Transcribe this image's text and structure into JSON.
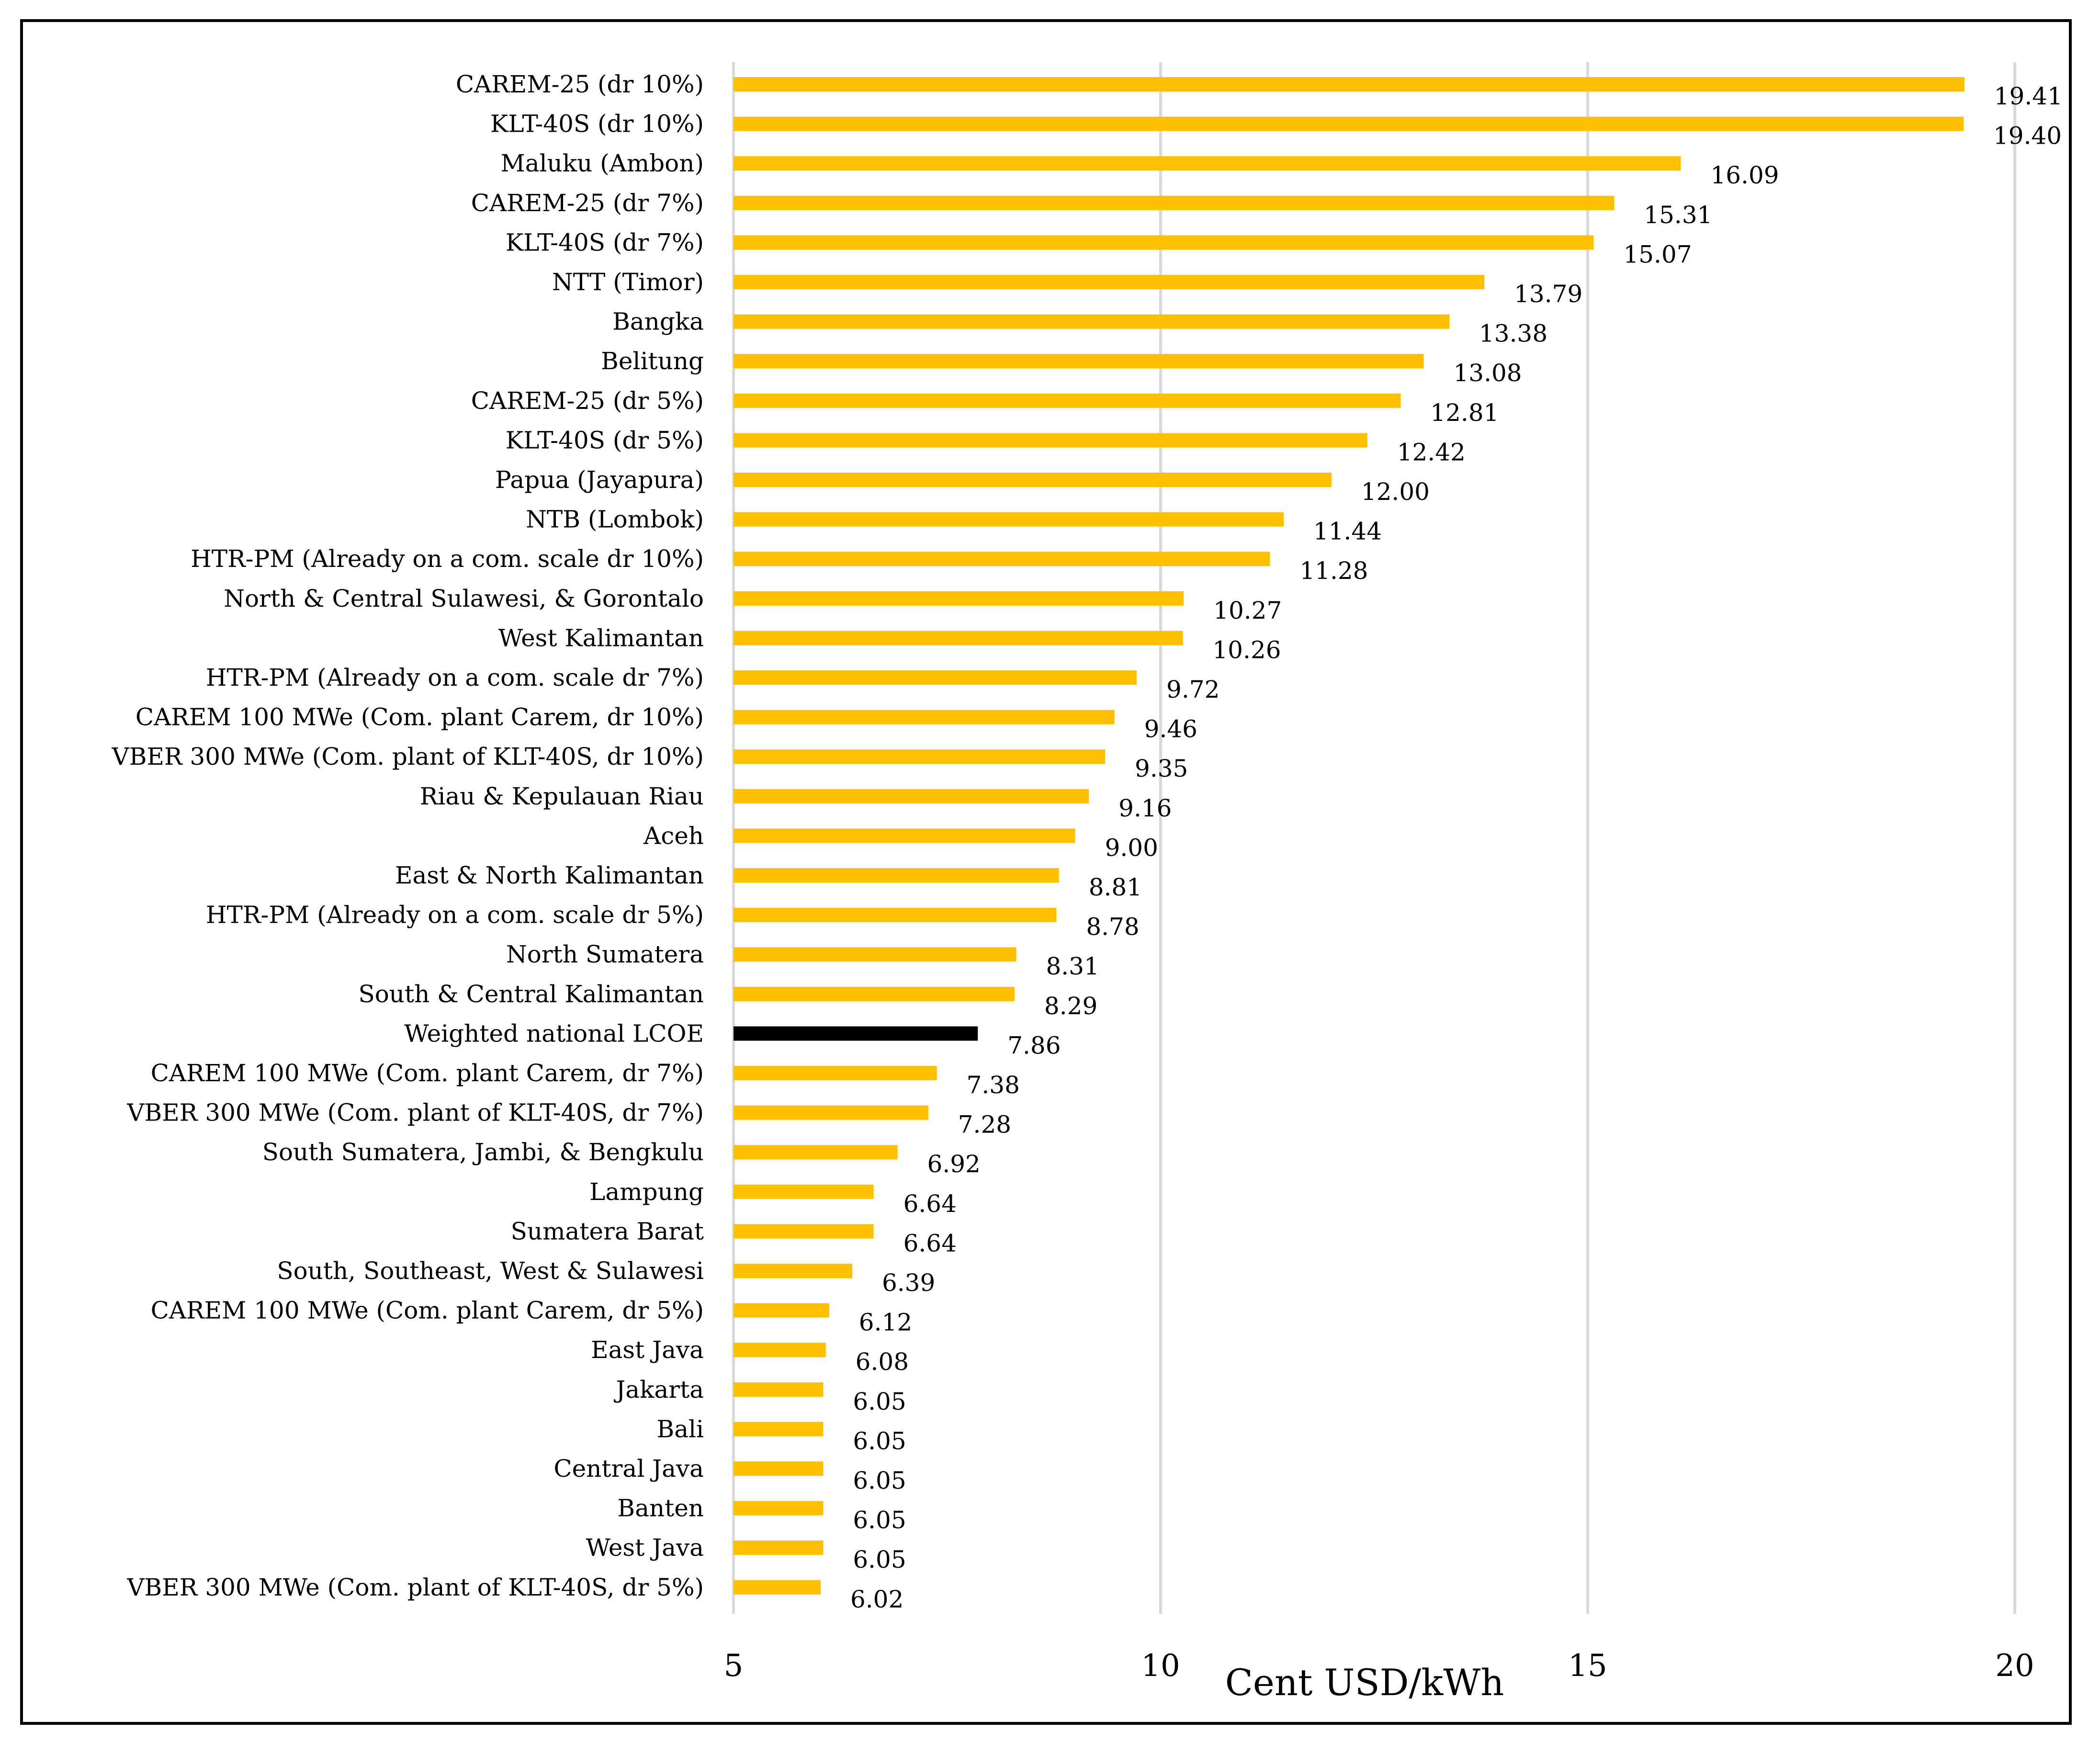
{
  "chart_data": {
    "type": "bar",
    "orientation": "horizontal",
    "title": "",
    "xlabel": "Cent USD/kWh",
    "ylabel": "",
    "xlim": [
      5,
      20
    ],
    "xticks": [
      5,
      10,
      15,
      20
    ],
    "grid": true,
    "colors": {
      "default": "#FFC000",
      "highlight": "#000000",
      "grid": "#d9d9d9",
      "frame": "#000000"
    },
    "categories": [
      "CAREM-25 (dr 10%)",
      "KLT-40S (dr 10%)",
      "Maluku (Ambon)",
      "CAREM-25 (dr 7%)",
      "KLT-40S (dr 7%)",
      "NTT (Timor)",
      "Bangka",
      "Belitung",
      "CAREM-25 (dr 5%)",
      "KLT-40S (dr 5%)",
      "Papua (Jayapura)",
      "NTB (Lombok)",
      "HTR-PM (Already on a com. scale dr 10%)",
      "North & Central Sulawesi, & Gorontalo",
      "West Kalimantan",
      "HTR-PM (Already on a com. scale dr 7%)",
      "CAREM 100 MWe (Com. plant Carem, dr 10%)",
      "VBER 300 MWe (Com. plant of KLT-40S, dr 10%)",
      "Riau & Kepulauan Riau",
      "Aceh",
      "East & North Kalimantan",
      "HTR-PM (Already on a com. scale dr 5%)",
      "North Sumatera",
      "South & Central Kalimantan",
      "Weighted national LCOE",
      "CAREM 100 MWe (Com. plant Carem, dr 7%)",
      "VBER 300 MWe (Com. plant of KLT-40S, dr 7%)",
      "South Sumatera, Jambi, & Bengkulu",
      "Lampung",
      "Sumatera Barat",
      "South, Southeast, West & Sulawesi",
      "CAREM 100 MWe (Com. plant Carem, dr 5%)",
      "East Java",
      "Jakarta",
      "Bali",
      "Central Java",
      "Banten",
      "West Java",
      "VBER 300 MWe (Com. plant of KLT-40S, dr 5%)"
    ],
    "values": [
      19.41,
      19.4,
      16.09,
      15.31,
      15.07,
      13.79,
      13.38,
      13.08,
      12.81,
      12.42,
      12.0,
      11.44,
      11.28,
      10.27,
      10.26,
      9.72,
      9.46,
      9.35,
      9.16,
      9.0,
      8.81,
      8.78,
      8.31,
      8.29,
      7.86,
      7.38,
      7.28,
      6.92,
      6.64,
      6.64,
      6.39,
      6.12,
      6.08,
      6.05,
      6.05,
      6.05,
      6.05,
      6.05,
      6.02
    ],
    "value_labels": [
      "19.41",
      "19.40",
      "16.09",
      "15.31",
      "15.07",
      "13.79",
      "13.38",
      "13.08",
      "12.81",
      "12.42",
      "12.00",
      "11.44",
      "11.28",
      "10.27",
      "10.26",
      "9.72",
      "9.46",
      "9.35",
      "9.16",
      "9.00",
      "8.81",
      "8.78",
      "8.31",
      "8.29",
      "7.86",
      "7.38",
      "7.28",
      "6.92",
      "6.64",
      "6.64",
      "6.39",
      "6.12",
      "6.08",
      "6.05",
      "6.05",
      "6.05",
      "6.05",
      "6.05",
      "6.02"
    ],
    "highlight_category": "Weighted national LCOE"
  }
}
